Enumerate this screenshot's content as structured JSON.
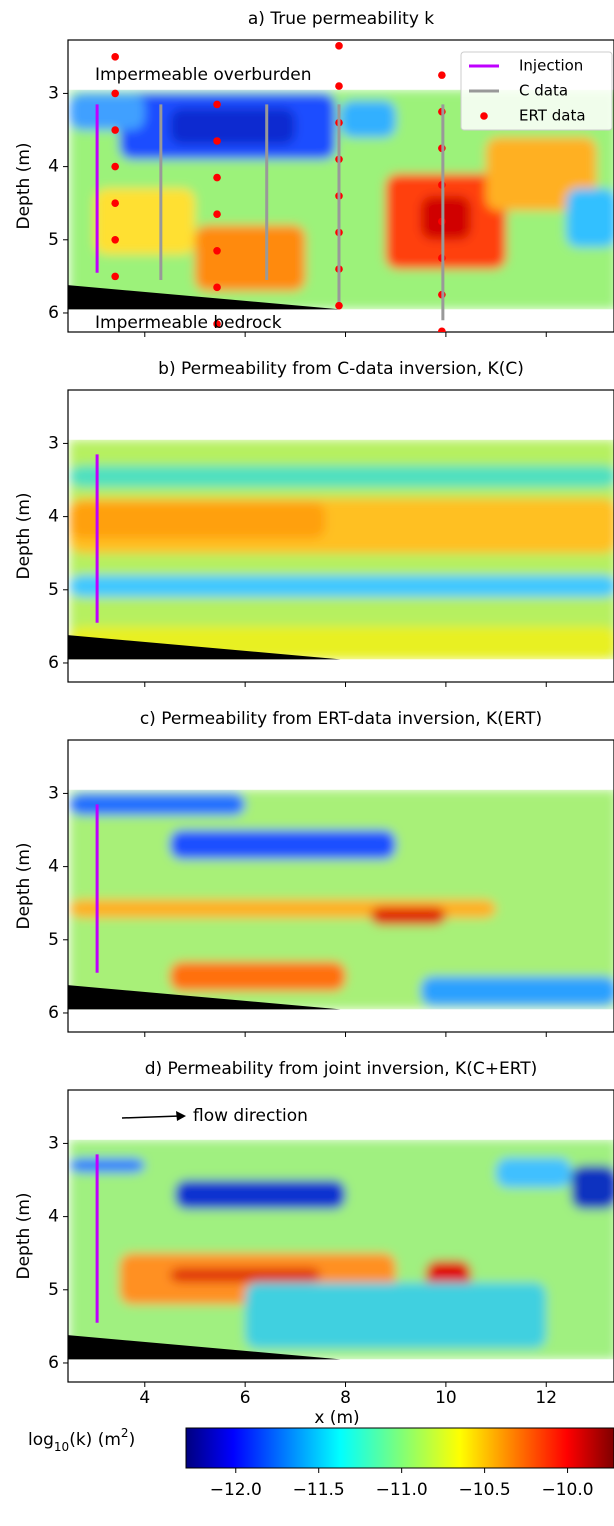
{
  "chart_data": [
    {
      "type": "heatmap",
      "title": "a) True permeability k",
      "ylabel": "Depth (m)",
      "xlim": [
        2.47,
        13.35
      ],
      "ylim": [
        6.26,
        2.27
      ],
      "xticks": [
        4,
        6,
        8,
        10,
        12
      ],
      "yticks": [
        3,
        4,
        5,
        6
      ],
      "annotations": [
        "Impermeable overburden",
        "Impermeable bedrock"
      ],
      "legend": "upper right",
      "series": [
        {
          "name": "Injection",
          "type": "segment",
          "color": "#bf00ff",
          "x": [
            3.05
          ],
          "top": [
            3.15
          ],
          "bottom": [
            5.45
          ]
        },
        {
          "name": "C data",
          "type": "segment",
          "color": "#999999",
          "x": [
            4.32,
            6.43,
            7.87,
            9.94
          ],
          "top": [
            3.15,
            3.15,
            3.15,
            3.15
          ],
          "bottom": [
            5.55,
            5.55,
            5.85,
            6.1
          ]
        },
        {
          "name": "ERT data",
          "type": "scatter",
          "color": "#ff0000",
          "x": [
            3.41,
            3.41,
            3.41,
            3.41,
            3.41,
            3.41,
            3.41,
            5.44,
            5.44,
            5.44,
            5.44,
            5.44,
            5.44,
            5.44,
            7.87,
            7.87,
            7.87,
            7.87,
            7.87,
            7.87,
            7.87,
            7.87,
            9.92,
            9.92,
            9.92,
            9.92,
            9.92,
            9.92,
            9.92,
            9.92
          ],
          "values": [
            2.5,
            3.0,
            3.5,
            4.0,
            4.5,
            5.0,
            5.5,
            3.15,
            3.65,
            4.15,
            4.65,
            5.15,
            5.65,
            6.15,
            2.35,
            2.9,
            3.4,
            3.9,
            4.4,
            4.9,
            5.4,
            5.9,
            2.75,
            3.25,
            3.75,
            4.25,
            4.75,
            5.25,
            5.75,
            6.25
          ]
        }
      ]
    },
    {
      "type": "heatmap",
      "title": "b) Permeability from C-data inversion, K(C)",
      "ylabel": "Depth (m)",
      "xlim": [
        2.47,
        13.35
      ],
      "ylim": [
        6.26,
        2.27
      ],
      "xticks": [
        4,
        6,
        8,
        10,
        12
      ],
      "yticks": [
        3,
        4,
        5,
        6
      ],
      "series": [
        {
          "type": "segment",
          "color": "#bf00ff",
          "x": [
            3.05
          ],
          "top": [
            3.15
          ],
          "bottom": [
            5.45
          ]
        }
      ]
    },
    {
      "type": "heatmap",
      "title": "c) Permeability from ERT-data inversion, K(ERT)",
      "ylabel": "Depth (m)",
      "xlim": [
        2.47,
        13.35
      ],
      "ylim": [
        6.26,
        2.27
      ],
      "xticks": [
        4,
        6,
        8,
        10,
        12
      ],
      "yticks": [
        3,
        4,
        5,
        6
      ],
      "series": [
        {
          "type": "segment",
          "color": "#bf00ff",
          "x": [
            3.05
          ],
          "top": [
            3.15
          ],
          "bottom": [
            5.45
          ]
        }
      ]
    },
    {
      "type": "heatmap",
      "title": "d) Permeability from joint inversion, K(C+ERT)",
      "ylabel": "Depth (m)",
      "xlabel": "x (m)",
      "xlim": [
        2.47,
        13.35
      ],
      "ylim": [
        6.26,
        2.27
      ],
      "xticks": [
        4,
        6,
        8,
        10,
        12
      ],
      "yticks": [
        3,
        4,
        5,
        6
      ],
      "annotations": [
        "flow direction"
      ],
      "series": [
        {
          "type": "segment",
          "color": "#bf00ff",
          "x": [
            3.05
          ],
          "top": [
            3.15
          ],
          "bottom": [
            5.45
          ]
        }
      ]
    },
    {
      "type": "colorbar",
      "label_parts": [
        "log",
        "10",
        "(k) (m",
        "2",
        ")"
      ],
      "colormap": "jet",
      "clim": [
        -12.3,
        -9.72
      ],
      "ticks": [
        {
          "value": -12,
          "label": "−12.0"
        },
        {
          "value": -11.5,
          "label": "−11.5"
        },
        {
          "value": -11,
          "label": "−11.0"
        },
        {
          "value": -10.5,
          "label": "−10.5"
        },
        {
          "value": -10,
          "label": "−10.0"
        }
      ]
    }
  ]
}
